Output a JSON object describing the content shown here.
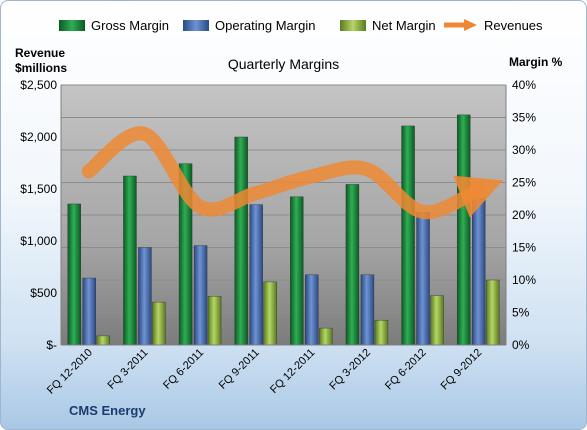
{
  "chart_data": {
    "type": "bar",
    "title": "Quarterly Margins",
    "company_label": "CMS Energy",
    "ylabel_left": "Revenue\n$millions",
    "ylabel_right": "Margin %",
    "categories": [
      "FQ 12-2010",
      "FQ 3-2011",
      "FQ 6-2011",
      "FQ 9-2011",
      "FQ 12-2011",
      "FQ 3-2012",
      "FQ 6-2012",
      "FQ 9-2012"
    ],
    "ylim_left": [
      0,
      2500
    ],
    "ylim_right": [
      0,
      40
    ],
    "left_ticks": [
      "$-",
      "$500",
      "$1,000",
      "$1,500",
      "$2,000",
      "$2,500"
    ],
    "right_ticks": [
      "0%",
      "5%",
      "10%",
      "15%",
      "20%",
      "25%",
      "30%",
      "35%",
      "40%"
    ],
    "series": [
      {
        "name": "Gross Margin",
        "axis": "right",
        "type": "bar",
        "color": "#1e8a3e",
        "values": [
          21.7,
          26.0,
          27.9,
          32.0,
          22.8,
          24.7,
          33.7,
          35.4
        ]
      },
      {
        "name": "Operating Margin",
        "axis": "right",
        "type": "bar",
        "color": "#4f74b6",
        "values": [
          10.3,
          15.0,
          15.3,
          21.6,
          10.8,
          10.8,
          20.4,
          22.6
        ]
      },
      {
        "name": "Net Margin",
        "axis": "right",
        "type": "bar",
        "color": "#8db43a",
        "values": [
          1.4,
          6.6,
          7.5,
          9.7,
          2.6,
          3.8,
          7.6,
          10.0
        ]
      },
      {
        "name": "Revenues",
        "axis": "left",
        "type": "line",
        "color": "#ee8833",
        "values": [
          1670,
          2030,
          1330,
          1460,
          1620,
          1690,
          1280,
          1490
        ]
      }
    ],
    "grid": true,
    "legend_position": "top"
  }
}
